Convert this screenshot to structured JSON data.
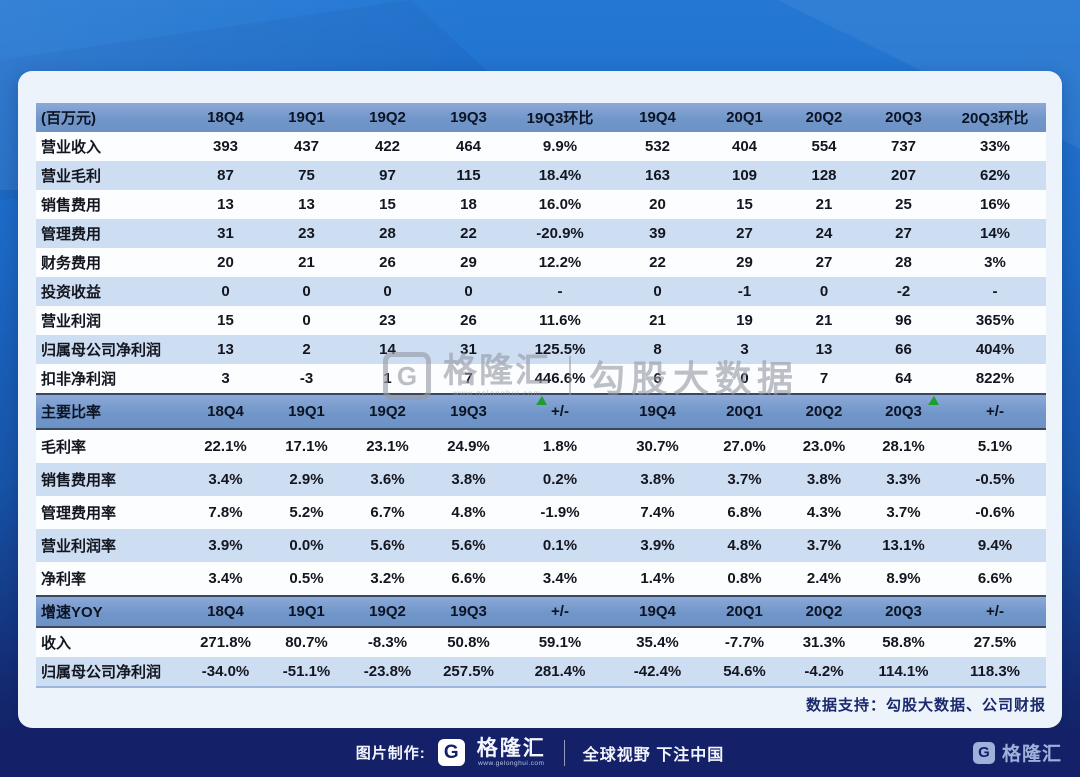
{
  "chart_data": {
    "type": "table",
    "sections": [
      {
        "header": {
          "label": "(百万元)",
          "cols": [
            "18Q4",
            "19Q1",
            "19Q2",
            "19Q3",
            "19Q3环比",
            "19Q4",
            "20Q1",
            "20Q2",
            "20Q3",
            "20Q3环比"
          ]
        },
        "rows": [
          {
            "label": "营业收入",
            "values": [
              "393",
              "437",
              "422",
              "464",
              "9.9%",
              "532",
              "404",
              "554",
              "737",
              "33%"
            ]
          },
          {
            "label": "营业毛利",
            "values": [
              "87",
              "75",
              "97",
              "115",
              "18.4%",
              "163",
              "109",
              "128",
              "207",
              "62%"
            ]
          },
          {
            "label": "销售费用",
            "values": [
              "13",
              "13",
              "15",
              "18",
              "16.0%",
              "20",
              "15",
              "21",
              "25",
              "16%"
            ]
          },
          {
            "label": "管理费用",
            "values": [
              "31",
              "23",
              "28",
              "22",
              "-20.9%",
              "39",
              "27",
              "24",
              "27",
              "14%"
            ]
          },
          {
            "label": "财务费用",
            "values": [
              "20",
              "21",
              "26",
              "29",
              "12.2%",
              "22",
              "29",
              "27",
              "28",
              "3%"
            ]
          },
          {
            "label": "投资收益",
            "values": [
              "0",
              "0",
              "0",
              "0",
              "-",
              "0",
              "-1",
              "0",
              "-2",
              "-"
            ]
          },
          {
            "label": "营业利润",
            "values": [
              "15",
              "0",
              "23",
              "26",
              "11.6%",
              "21",
              "19",
              "21",
              "96",
              "365%"
            ]
          },
          {
            "label": "归属母公司净利润",
            "values": [
              "13",
              "2",
              "14",
              "31",
              "125.5%",
              "8",
              "3",
              "13",
              "66",
              "404%"
            ]
          },
          {
            "label": "扣非净利润",
            "values": [
              "3",
              "-3",
              "1",
              "7",
              "446.6%",
              "6",
              "0",
              "7",
              "64",
              "822%"
            ]
          }
        ]
      },
      {
        "header": {
          "label": "主要比率",
          "cols": [
            "18Q4",
            "19Q1",
            "19Q2",
            "19Q3",
            "+/-",
            "19Q4",
            "20Q1",
            "20Q2",
            "20Q3",
            "+/-"
          ]
        },
        "rows": [
          {
            "label": "毛利率",
            "values": [
              "22.1%",
              "17.1%",
              "23.1%",
              "24.9%",
              "1.8%",
              "30.7%",
              "27.0%",
              "23.0%",
              "28.1%",
              "5.1%"
            ]
          },
          {
            "label": "销售费用率",
            "values": [
              "3.4%",
              "2.9%",
              "3.6%",
              "3.8%",
              "0.2%",
              "3.8%",
              "3.7%",
              "3.8%",
              "3.3%",
              "-0.5%"
            ]
          },
          {
            "label": "管理费用率",
            "values": [
              "7.8%",
              "5.2%",
              "6.7%",
              "4.8%",
              "-1.9%",
              "7.4%",
              "6.8%",
              "4.3%",
              "3.7%",
              "-0.6%"
            ]
          },
          {
            "label": "营业利润率",
            "values": [
              "3.9%",
              "0.0%",
              "5.6%",
              "5.6%",
              "0.1%",
              "3.9%",
              "4.8%",
              "3.7%",
              "13.1%",
              "9.4%"
            ]
          },
          {
            "label": "净利率",
            "values": [
              "3.4%",
              "0.5%",
              "3.2%",
              "6.6%",
              "3.4%",
              "1.4%",
              "0.8%",
              "2.4%",
              "8.9%",
              "6.6%"
            ]
          }
        ]
      },
      {
        "header": {
          "label": "增速YOY",
          "cols": [
            "18Q4",
            "19Q1",
            "19Q2",
            "19Q3",
            "+/-",
            "19Q4",
            "20Q1",
            "20Q2",
            "20Q3",
            "+/-"
          ]
        },
        "rows": [
          {
            "label": "收入",
            "values": [
              "271.8%",
              "80.7%",
              "-8.3%",
              "50.8%",
              "59.1%",
              "35.4%",
              "-7.7%",
              "31.3%",
              "58.8%",
              "27.5%"
            ]
          },
          {
            "label": "归属母公司净利润",
            "values": [
              "-34.0%",
              "-51.1%",
              "-23.8%",
              "257.5%",
              "281.4%",
              "-42.4%",
              "54.6%",
              "-4.2%",
              "114.1%",
              "118.3%"
            ]
          }
        ]
      }
    ],
    "source_note": "数据支持：勾股大数据、公司财报"
  },
  "watermark": {
    "g": "G",
    "brand": "格隆汇",
    "url": "www.gelonghui.com",
    "suffix": "勾股大数据"
  },
  "footer": {
    "made_by": "图片制作:",
    "logo_letter": "G",
    "brand": "格隆汇",
    "brand_url": "www.gelonghui.com",
    "slogan": "全球视野 下注中国",
    "brand_right": "格隆汇"
  },
  "colors": {
    "background_top": "#2478d3",
    "background_bottom": "#131f63",
    "card": "#edf3fb",
    "header_row": "#7196c9",
    "stripe_even": "#cdddf2",
    "footer_bar": "#142169",
    "note_text": "#1b2a6e",
    "marker_green": "#1f9d30"
  }
}
